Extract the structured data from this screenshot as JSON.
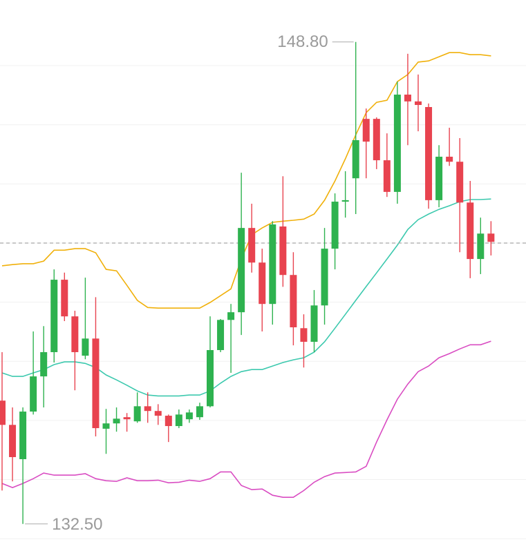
{
  "chart_data": {
    "type": "candlestick",
    "categories": [
      null,
      null,
      null,
      null,
      null,
      null,
      null,
      null,
      null,
      null,
      null,
      null,
      null,
      null,
      null,
      null,
      null,
      null,
      null,
      null,
      null,
      null,
      null,
      null,
      null,
      null,
      null,
      null,
      null,
      null,
      null,
      null,
      null,
      null,
      null,
      null,
      null,
      null,
      null,
      null,
      null,
      null,
      null,
      null,
      null,
      null,
      null,
      null
    ],
    "open": [
      136.67,
      135.85,
      134.69,
      136.3,
      137.49,
      138.31,
      140.76,
      139.52,
      138.19,
      138.77,
      135.72,
      135.9,
      136.11,
      135.97,
      136.48,
      136.32,
      136.16,
      135.81,
      136.04,
      136.11,
      136.48,
      138.38,
      139.4,
      139.66,
      142.51,
      141.34,
      139.94,
      142.56,
      140.92,
      139.12,
      138.66,
      139.89,
      141.81,
      143.4,
      144.19,
      146.2,
      146.2,
      144.8,
      143.73,
      147.02,
      146.79,
      146.6,
      143.45,
      144.92,
      144.75,
      143.37,
      141.46,
      142.32
    ],
    "high": [
      138.31,
      136.44,
      136.44,
      139.01,
      139.19,
      141.11,
      141.0,
      139.71,
      140.83,
      140.17,
      136.39,
      136.44,
      136.25,
      136.95,
      136.95,
      136.55,
      136.2,
      136.37,
      136.37,
      136.6,
      139.52,
      139.43,
      139.94,
      144.38,
      143.33,
      141.81,
      142.74,
      144.26,
      141.69,
      139.59,
      140.41,
      142.51,
      143.68,
      144.43,
      148.8,
      146.55,
      146.25,
      145.71,
      147.46,
      148.4,
      147.7,
      146.72,
      145.31,
      145.9,
      145.55,
      144.1,
      142.86,
      142.74
    ],
    "low": [
      133.63,
      133.94,
      132.5,
      136.2,
      136.44,
      137.96,
      139.36,
      137.02,
      138.07,
      135.46,
      134.87,
      135.62,
      135.62,
      135.92,
      135.92,
      135.85,
      135.27,
      135.74,
      135.92,
      136.02,
      136.44,
      138.31,
      137.61,
      138.89,
      141.0,
      139.01,
      139.24,
      140.52,
      138.54,
      137.79,
      138.31,
      139.24,
      141.11,
      142.86,
      142.98,
      144.19,
      144.5,
      143.56,
      143.33,
      145.31,
      145.78,
      143.16,
      143.21,
      144.61,
      141.69,
      140.81,
      140.95,
      141.58
    ],
    "close": [
      135.85,
      134.76,
      136.3,
      137.49,
      138.31,
      140.76,
      139.52,
      138.31,
      138.77,
      135.74,
      135.9,
      136.06,
      136.04,
      136.48,
      136.32,
      136.16,
      135.81,
      136.2,
      136.27,
      136.48,
      138.38,
      139.4,
      139.66,
      142.51,
      141.34,
      139.94,
      142.63,
      140.92,
      139.15,
      138.66,
      139.89,
      141.81,
      143.4,
      143.45,
      145.48,
      145.43,
      144.8,
      143.73,
      147.02,
      146.79,
      146.67,
      143.45,
      144.92,
      144.75,
      143.37,
      141.46,
      142.32,
      142.04
    ],
    "up_color": "#2eb24f",
    "down_color": "#e8434f",
    "bands": [
      {
        "color": "#f0b00a",
        "values": [
          141.23,
          141.27,
          141.3,
          141.3,
          141.39,
          141.76,
          141.76,
          141.81,
          141.81,
          141.67,
          141.11,
          141.06,
          140.57,
          140.06,
          139.82,
          139.8,
          139.8,
          139.8,
          139.8,
          139.8,
          139.99,
          140.22,
          140.45,
          141.46,
          142.28,
          142.51,
          142.7,
          142.74,
          142.77,
          142.81,
          142.98,
          143.45,
          144.1,
          144.85,
          145.66,
          146.41,
          146.76,
          146.83,
          147.46,
          147.7,
          148.12,
          148.16,
          148.3,
          148.44,
          148.44,
          148.37,
          148.37,
          148.33
        ]
      },
      {
        "color": "#3cc9ae",
        "values": [
          137.61,
          137.49,
          137.49,
          137.61,
          137.72,
          137.89,
          137.98,
          137.98,
          137.93,
          137.79,
          137.54,
          137.37,
          137.19,
          137.0,
          136.86,
          136.83,
          136.83,
          136.83,
          136.86,
          136.86,
          137.0,
          137.26,
          137.49,
          137.65,
          137.72,
          137.72,
          137.84,
          137.96,
          138.05,
          138.12,
          138.31,
          138.66,
          139.12,
          139.59,
          140.06,
          140.53,
          140.99,
          141.46,
          141.93,
          142.46,
          142.79,
          142.98,
          143.14,
          143.26,
          143.4,
          143.47,
          143.47,
          143.49
        ]
      },
      {
        "color": "#d94cc2",
        "values": [
          133.87,
          133.73,
          133.87,
          134.03,
          134.22,
          134.15,
          134.15,
          134.15,
          134.2,
          134.03,
          133.96,
          133.94,
          134.06,
          133.96,
          133.96,
          133.98,
          133.89,
          133.91,
          133.98,
          133.94,
          134.03,
          134.26,
          134.26,
          133.8,
          133.66,
          133.68,
          133.47,
          133.4,
          133.4,
          133.63,
          133.91,
          134.1,
          134.22,
          134.24,
          134.26,
          134.45,
          135.27,
          136.02,
          136.72,
          137.23,
          137.65,
          137.84,
          138.12,
          138.26,
          138.42,
          138.56,
          138.56,
          138.68
        ]
      }
    ],
    "ylim": [
      131.28,
      150.22
    ],
    "yticks": [
      132,
      134,
      136,
      138,
      140,
      142,
      144,
      146,
      148
    ],
    "grid": true,
    "grid_color": "#f0f0f0",
    "price_line": 142.0,
    "price_line_color": "#a8a8a8",
    "annotations": [
      {
        "label": "148.80",
        "value": 148.8,
        "side": "left"
      },
      {
        "label": "132.50",
        "value": 132.5,
        "side": "right"
      }
    ]
  }
}
